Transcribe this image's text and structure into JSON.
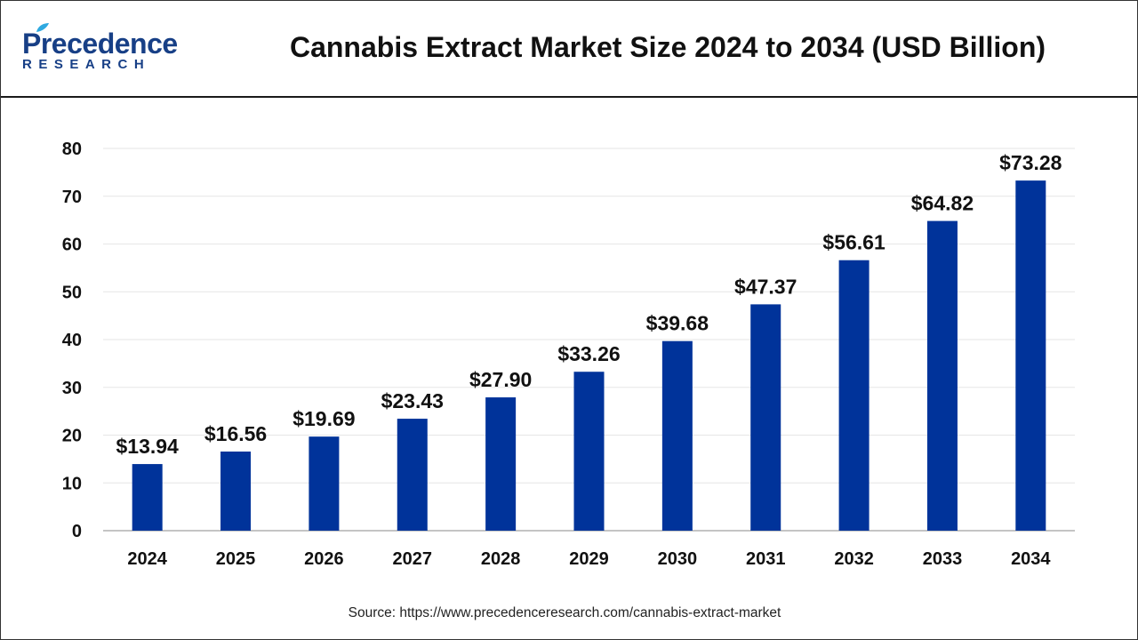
{
  "header": {
    "logo_main": "Precedence",
    "logo_sub": "RESEARCH",
    "title": "Cannabis Extract Market Size 2024 to 2034 (USD Billion)"
  },
  "colors": {
    "bar": "#00339a",
    "grid": "#e6e6e6",
    "axis": "#b0b0b0",
    "logo": "#173f86",
    "logo_accent": "#2fa9e0"
  },
  "chart_data": {
    "type": "bar",
    "title": "Cannabis Extract Market Size 2024 to 2034 (USD Billion)",
    "xlabel": "",
    "ylabel": "",
    "categories": [
      "2024",
      "2025",
      "2026",
      "2027",
      "2028",
      "2029",
      "2030",
      "2031",
      "2032",
      "2033",
      "2034"
    ],
    "values": [
      13.94,
      16.56,
      19.69,
      23.43,
      27.9,
      33.26,
      39.68,
      47.37,
      56.61,
      64.82,
      73.28
    ],
    "data_labels": [
      "$13.94",
      "$16.56",
      "$19.69",
      "$23.43",
      "$27.90",
      "$33.26",
      "$39.68",
      "$47.37",
      "$56.61",
      "$64.82",
      "$73.28"
    ],
    "yticks": [
      0,
      10,
      20,
      30,
      40,
      50,
      60,
      70,
      80
    ],
    "ylim": [
      0,
      80
    ],
    "grid": true,
    "legend": "none"
  },
  "footer": {
    "source": "Source: https://www.precedenceresearch.com/cannabis-extract-market"
  }
}
